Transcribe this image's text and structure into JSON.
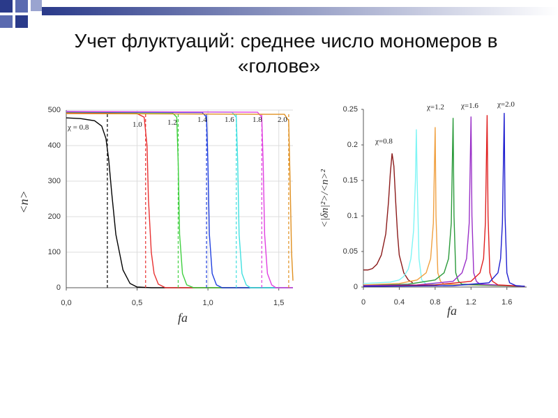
{
  "title": "Учет флуктуаций: среднее число мономеров в «голове»",
  "chart_data": [
    {
      "type": "line",
      "xlabel": "fa",
      "ylabel": "<n>",
      "grid": true,
      "xlim": [
        0,
        1.6
      ],
      "ylim": [
        0,
        500
      ],
      "xticks": [
        {
          "value": 0,
          "label": "0,0"
        },
        {
          "value": 0.5,
          "label": "0,5"
        },
        {
          "value": 1,
          "label": "1,0"
        },
        {
          "value": 1.5,
          "label": "1,5"
        }
      ],
      "yticks": [
        0,
        100,
        200,
        300,
        400,
        500
      ],
      "series": [
        {
          "name": "χ = 0.8",
          "color": "#000000",
          "dashed_x": 0.29,
          "x": [
            0,
            0.1,
            0.2,
            0.25,
            0.28,
            0.3,
            0.32,
            0.35,
            0.4,
            0.45,
            0.5,
            0.6,
            1.6
          ],
          "values": [
            478,
            476,
            470,
            455,
            420,
            360,
            270,
            150,
            50,
            12,
            2,
            0,
            0
          ]
        },
        {
          "name": "1.0",
          "color": "#e83030",
          "dashed_x": 0.56,
          "x": [
            0,
            0.5,
            0.55,
            0.57,
            0.58,
            0.6,
            0.62,
            0.65,
            0.7,
            1.6
          ],
          "values": [
            492,
            490,
            480,
            400,
            250,
            100,
            40,
            10,
            0,
            0
          ]
        },
        {
          "name": "1.2",
          "color": "#40d040",
          "dashed_x": 0.79,
          "x": [
            0,
            0.75,
            0.78,
            0.79,
            0.8,
            0.82,
            0.85,
            0.9,
            1.6
          ],
          "values": [
            494,
            492,
            480,
            350,
            150,
            40,
            8,
            0,
            0
          ]
        },
        {
          "name": "1.4",
          "color": "#2040e0",
          "dashed_x": 0.99,
          "x": [
            0,
            0.96,
            0.99,
            1.0,
            1.01,
            1.03,
            1.06,
            1.1,
            1.6
          ],
          "values": [
            495,
            493,
            480,
            350,
            150,
            40,
            8,
            0,
            0
          ]
        },
        {
          "name": "1.6",
          "color": "#40e0e0",
          "dashed_x": 1.2,
          "x": [
            0,
            1.17,
            1.2,
            1.21,
            1.22,
            1.24,
            1.27,
            1.3,
            1.6
          ],
          "values": [
            496,
            494,
            480,
            350,
            150,
            40,
            8,
            0,
            0
          ]
        },
        {
          "name": "1.8",
          "color": "#e040e0",
          "dashed_x": 1.38,
          "x": [
            0,
            1.35,
            1.38,
            1.39,
            1.4,
            1.42,
            1.45,
            1.48,
            1.6
          ],
          "values": [
            496,
            494,
            480,
            350,
            150,
            40,
            8,
            0,
            0
          ]
        },
        {
          "name": "2.0",
          "color": "#e09020",
          "dashed_x": 1.57,
          "x": [
            0,
            1.54,
            1.57,
            1.58,
            1.59,
            1.6
          ],
          "values": [
            490,
            488,
            470,
            300,
            100,
            20
          ]
        }
      ]
    },
    {
      "type": "line",
      "xlabel": "fa",
      "ylabel": "<|δn|²>/<n>²",
      "grid": false,
      "xlim": [
        0,
        1.82
      ],
      "ylim": [
        0,
        0.25
      ],
      "xticks": [
        0,
        0.4,
        0.8,
        1.2,
        1.6
      ],
      "yticks": [
        0,
        0.05,
        0.1,
        0.15,
        0.2,
        0.25
      ],
      "series": [
        {
          "name": "χ=0.8",
          "color": "#8b1a1a",
          "x": [
            0,
            0.05,
            0.1,
            0.15,
            0.2,
            0.25,
            0.28,
            0.3,
            0.32,
            0.34,
            0.36,
            0.38,
            0.4,
            0.45,
            0.5,
            0.55
          ],
          "values": [
            0.024,
            0.024,
            0.026,
            0.032,
            0.045,
            0.075,
            0.12,
            0.16,
            0.188,
            0.17,
            0.12,
            0.075,
            0.045,
            0.02,
            0.01,
            0.006
          ]
        },
        {
          "color": "#7ff5f5",
          "x": [
            0,
            0.3,
            0.4,
            0.45,
            0.5,
            0.53,
            0.56,
            0.58,
            0.59,
            0.6,
            0.62,
            0.65,
            0.7,
            1.8
          ],
          "values": [
            0.005,
            0.007,
            0.01,
            0.015,
            0.025,
            0.04,
            0.08,
            0.15,
            0.222,
            0.15,
            0.04,
            0.01,
            0.004,
            0.001
          ]
        },
        {
          "name": "χ=1.2",
          "color": "#f0a040",
          "x": [
            0,
            0.4,
            0.6,
            0.7,
            0.75,
            0.78,
            0.8,
            0.81,
            0.83,
            0.86,
            0.9,
            1.8
          ],
          "values": [
            0.003,
            0.005,
            0.01,
            0.02,
            0.04,
            0.09,
            0.225,
            0.1,
            0.02,
            0.008,
            0.004,
            0.001
          ]
        },
        {
          "color": "#2a9a3a",
          "x": [
            0,
            0.5,
            0.8,
            0.9,
            0.95,
            0.98,
            1.0,
            1.01,
            1.03,
            1.06,
            1.1,
            1.8
          ],
          "values": [
            0.002,
            0.004,
            0.01,
            0.02,
            0.04,
            0.09,
            0.238,
            0.1,
            0.02,
            0.008,
            0.004,
            0.001
          ]
        },
        {
          "name": "χ=1.6",
          "color": "#9a30c8",
          "x": [
            0,
            0.6,
            1.0,
            1.1,
            1.15,
            1.18,
            1.2,
            1.21,
            1.23,
            1.26,
            1.3,
            1.8
          ],
          "values": [
            0.002,
            0.003,
            0.008,
            0.02,
            0.04,
            0.09,
            0.24,
            0.1,
            0.02,
            0.008,
            0.004,
            0.001
          ]
        },
        {
          "color": "#e02020",
          "x": [
            0,
            0.8,
            1.2,
            1.3,
            1.34,
            1.36,
            1.38,
            1.39,
            1.41,
            1.44,
            1.5,
            1.8
          ],
          "values": [
            0.001,
            0.003,
            0.008,
            0.02,
            0.04,
            0.09,
            0.242,
            0.1,
            0.02,
            0.008,
            0.003,
            0.001
          ]
        },
        {
          "name": "χ=2.0",
          "color": "#2020d0",
          "x": [
            0,
            1.0,
            1.4,
            1.5,
            1.53,
            1.55,
            1.57,
            1.58,
            1.6,
            1.63,
            1.7,
            1.8
          ],
          "values": [
            0.001,
            0.002,
            0.006,
            0.02,
            0.04,
            0.09,
            0.245,
            0.1,
            0.02,
            0.006,
            0.002,
            0.001
          ]
        }
      ]
    }
  ]
}
